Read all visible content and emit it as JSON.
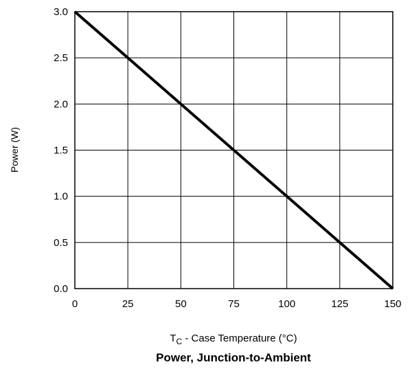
{
  "chart_data": {
    "type": "line",
    "title": "Power, Junction-to-Ambient",
    "xlabel": "T",
    "xlabel_sub": "C",
    "xlabel_rest": " - Case Temperature (°C)",
    "ylabel": "Power (W)",
    "xlim": [
      0,
      150
    ],
    "ylim": [
      0.0,
      3.0
    ],
    "xticks": [
      "0",
      "25",
      "50",
      "75",
      "100",
      "125",
      "150"
    ],
    "yticks": [
      "0.0",
      "0.5",
      "1.0",
      "1.5",
      "2.0",
      "2.5",
      "3.0"
    ],
    "xtick_values": [
      0,
      25,
      50,
      75,
      100,
      125,
      150
    ],
    "ytick_values": [
      0.0,
      0.5,
      1.0,
      1.5,
      2.0,
      2.5,
      3.0
    ],
    "grid": true,
    "series": [
      {
        "x": [
          0,
          25,
          50,
          75,
          100,
          125,
          150
        ],
        "y": [
          3.0,
          2.5,
          2.0,
          1.5,
          1.0,
          0.5,
          0.0
        ]
      }
    ],
    "colors": {
      "line": "#000000",
      "grid": "#000000",
      "background": "#ffffff"
    }
  }
}
